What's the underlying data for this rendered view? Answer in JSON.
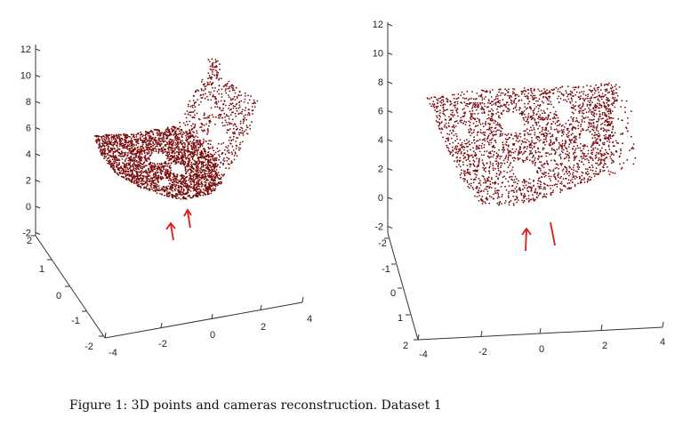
{
  "caption": "Figure 1: 3D points and cameras reconstruction. Dataset 1",
  "colors": {
    "points": "#7a0d0d",
    "cameras": "#e01818",
    "axis": "#333333"
  },
  "chart_data": [
    {
      "type": "scatter",
      "title": "",
      "description_labels": {
        "points": "3D points",
        "cameras": "cameras"
      },
      "z_ticks": [
        "12",
        "10",
        "8",
        "6",
        "4",
        "2",
        "0",
        "-2"
      ],
      "y_ticks": [
        "2",
        "1",
        "0",
        "-1",
        "-2"
      ],
      "x_ticks": [
        "-4",
        "-2",
        "0",
        "2",
        "4"
      ],
      "zlim": [
        -2,
        12
      ],
      "ylim": [
        -2,
        2
      ],
      "xlim": [
        -4,
        4
      ],
      "camera_count": 2
    },
    {
      "type": "scatter",
      "title": "",
      "description_labels": {
        "points": "3D points",
        "cameras": "cameras"
      },
      "z_ticks": [
        "12",
        "10",
        "8",
        "6",
        "4",
        "2",
        "0",
        "-2"
      ],
      "y_ticks": [
        "-2",
        "-1",
        "0",
        "1",
        "2"
      ],
      "x_ticks": [
        "-4",
        "-2",
        "0",
        "2",
        "4"
      ],
      "zlim": [
        -2,
        12
      ],
      "ylim": [
        -2,
        2
      ],
      "xlim": [
        -4,
        4
      ],
      "camera_count": 2
    }
  ]
}
